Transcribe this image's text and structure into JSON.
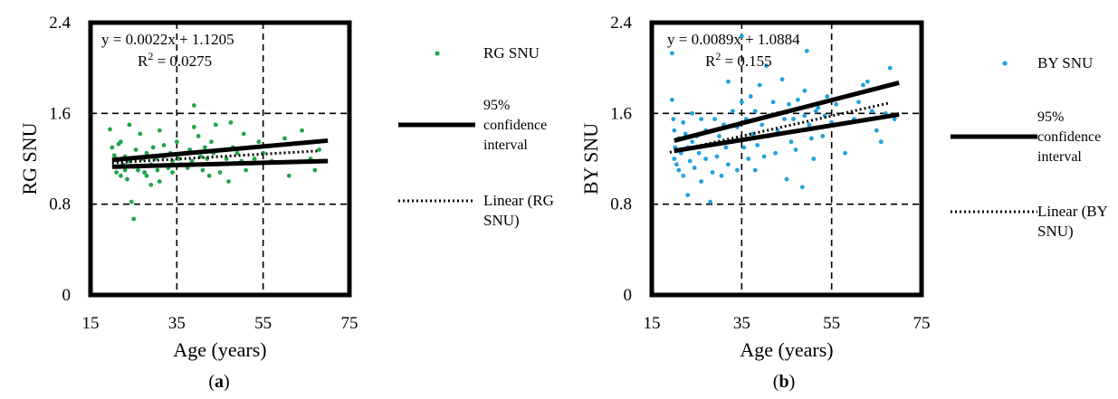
{
  "chart_data": [
    {
      "type": "scatter",
      "panel_label": "a",
      "title": "",
      "xlabel": "Age (years)",
      "ylabel": "RG SNU",
      "xlim": [
        15,
        75
      ],
      "ylim": [
        0,
        2.4
      ],
      "xticks": [
        "15",
        "35",
        "55",
        "75"
      ],
      "yticks": [
        "0",
        "0.8",
        "1.6",
        "2.4"
      ],
      "grid": "dashed at x=35, x=55, y=0.8, y=1.6",
      "legend_position": "right",
      "equation": "y = 0.0022x + 1.1205",
      "r2_prefix": "R",
      "r2_sup": "2",
      "r2_suffix": " = 0.0275",
      "color": "#1fa64a",
      "trend": {
        "name": "Linear (RG SNU)",
        "slope": 0.0022,
        "intercept": 1.1205,
        "x": [
          20,
          68
        ]
      },
      "ci_upper": {
        "x": [
          20,
          70
        ],
        "y": [
          1.19,
          1.36
        ]
      },
      "ci_lower": {
        "x": [
          20,
          70
        ],
        "y": [
          1.13,
          1.18
        ]
      },
      "legend": [
        {
          "kind": "dot",
          "label": "RG SNU"
        },
        {
          "kind": "thick",
          "label": "95% confidence interval"
        },
        {
          "kind": "dotted",
          "label": "Linear (RG SNU)"
        }
      ],
      "series": [
        {
          "name": "RG SNU",
          "points": [
            [
              19.5,
              1.46
            ],
            [
              20,
              1.3
            ],
            [
              20.5,
              1.23
            ],
            [
              21,
              1.2
            ],
            [
              21,
              1.08
            ],
            [
              21.5,
              1.33
            ],
            [
              22,
              1.05
            ],
            [
              22,
              1.35
            ],
            [
              22.5,
              1.15
            ],
            [
              23,
              1.1
            ],
            [
              23,
              1.22
            ],
            [
              23.5,
              1.02
            ],
            [
              24,
              1.5
            ],
            [
              24,
              1.18
            ],
            [
              24.5,
              0.82
            ],
            [
              25,
              0.67
            ],
            [
              25,
              1.13
            ],
            [
              25.5,
              1.28
            ],
            [
              26,
              1.1
            ],
            [
              26.5,
              1.42
            ],
            [
              27,
              1.2
            ],
            [
              27.5,
              1.08
            ],
            [
              28,
              1.25
            ],
            [
              28,
              1.05
            ],
            [
              29,
              1.15
            ],
            [
              29,
              0.97
            ],
            [
              29.5,
              1.3
            ],
            [
              30,
              1.2
            ],
            [
              30.5,
              1.1
            ],
            [
              31,
              1.45
            ],
            [
              31,
              1.0
            ],
            [
              32,
              1.22
            ],
            [
              32,
              1.32
            ],
            [
              33,
              1.12
            ],
            [
              33.5,
              1.25
            ],
            [
              34,
              1.18
            ],
            [
              34,
              1.08
            ],
            [
              35,
              1.35
            ],
            [
              35.5,
              1.2
            ],
            [
              36,
              1.15
            ],
            [
              37,
              1.25
            ],
            [
              37.5,
              1.12
            ],
            [
              38,
              1.28
            ],
            [
              38.5,
              1.18
            ],
            [
              39,
              1.67
            ],
            [
              39,
              1.48
            ],
            [
              40,
              1.4
            ],
            [
              40.5,
              1.22
            ],
            [
              41,
              1.1
            ],
            [
              41.5,
              1.3
            ],
            [
              42,
              1.2
            ],
            [
              42.5,
              1.05
            ],
            [
              43,
              1.35
            ],
            [
              43.5,
              1.25
            ],
            [
              44,
              1.5
            ],
            [
              44.5,
              1.15
            ],
            [
              45,
              1.08
            ],
            [
              46,
              1.28
            ],
            [
              46.5,
              1.2
            ],
            [
              47,
              1.0
            ],
            [
              47.5,
              1.52
            ],
            [
              48,
              1.3
            ],
            [
              49,
              1.25
            ],
            [
              50,
              1.18
            ],
            [
              50.5,
              1.42
            ],
            [
              51,
              1.1
            ],
            [
              52,
              1.3
            ],
            [
              53,
              1.2
            ],
            [
              54,
              1.35
            ],
            [
              55,
              1.25
            ],
            [
              57,
              1.18
            ],
            [
              60,
              1.38
            ],
            [
              61,
              1.05
            ],
            [
              64,
              1.45
            ],
            [
              66,
              1.2
            ],
            [
              67,
              1.1
            ],
            [
              68,
              1.28
            ]
          ]
        }
      ]
    },
    {
      "type": "scatter",
      "panel_label": "b",
      "title": "",
      "xlabel": "Age (years)",
      "ylabel": "BY SNU",
      "xlim": [
        15,
        75
      ],
      "ylim": [
        0,
        2.4
      ],
      "xticks": [
        "15",
        "35",
        "55",
        "75"
      ],
      "yticks": [
        "0",
        "0.8",
        "1.6",
        "2.4"
      ],
      "grid": "dashed at x=35, x=55, y=0.8, y=1.6",
      "legend_position": "right",
      "equation": "y = 0.0089x + 1.0884",
      "r2_prefix": "R",
      "r2_sup": "2",
      "r2_suffix": " = 0.155",
      "color": "#1fa3dd",
      "trend": {
        "name": "Linear (BY SNU)",
        "slope": 0.0089,
        "intercept": 1.0884,
        "x": [
          19,
          68
        ]
      },
      "ci_upper": {
        "x": [
          20,
          70
        ],
        "y": [
          1.36,
          1.87
        ]
      },
      "ci_lower": {
        "x": [
          20,
          70
        ],
        "y": [
          1.27,
          1.59
        ]
      },
      "legend": [
        {
          "kind": "dot",
          "label": "BY SNU"
        },
        {
          "kind": "thick",
          "label": "95% confidence interval"
        },
        {
          "kind": "dotted",
          "label": "Linear (BY SNU)"
        }
      ],
      "series": [
        {
          "name": "BY SNU",
          "points": [
            [
              19.5,
              2.13
            ],
            [
              19.5,
              1.72
            ],
            [
              19.8,
              1.55
            ],
            [
              20,
              1.45
            ],
            [
              20,
              1.2
            ],
            [
              20.2,
              1.3
            ],
            [
              20.5,
              1.15
            ],
            [
              21,
              1.38
            ],
            [
              21,
              1.1
            ],
            [
              21.5,
              1.25
            ],
            [
              22,
              1.52
            ],
            [
              22,
              1.05
            ],
            [
              22.5,
              1.42
            ],
            [
              23,
              1.3
            ],
            [
              23,
              0.88
            ],
            [
              23.5,
              1.18
            ],
            [
              24,
              1.6
            ],
            [
              24,
              1.35
            ],
            [
              24.5,
              1.12
            ],
            [
              25,
              1.4
            ],
            [
              25.5,
              1.25
            ],
            [
              26,
              1.55
            ],
            [
              26,
              1.0
            ],
            [
              27,
              1.2
            ],
            [
              27,
              1.45
            ],
            [
              28,
              0.82
            ],
            [
              28,
              1.32
            ],
            [
              28.5,
              1.08
            ],
            [
              29,
              1.55
            ],
            [
              29.5,
              1.22
            ],
            [
              30,
              1.4
            ],
            [
              30.5,
              1.05
            ],
            [
              31,
              1.5
            ],
            [
              31.5,
              1.3
            ],
            [
              32,
              1.88
            ],
            [
              32,
              1.15
            ],
            [
              33,
              1.62
            ],
            [
              33,
              1.35
            ],
            [
              34,
              1.1
            ],
            [
              34,
              1.48
            ],
            [
              35,
              2.28
            ],
            [
              35,
              1.7
            ],
            [
              35.5,
              1.3
            ],
            [
              36,
              1.55
            ],
            [
              36.5,
              1.2
            ],
            [
              37,
              1.75
            ],
            [
              37.5,
              1.42
            ],
            [
              38,
              1.62
            ],
            [
              38,
              1.1
            ],
            [
              38.5,
              1.32
            ],
            [
              39,
              1.85
            ],
            [
              39.5,
              1.5
            ],
            [
              40,
              1.22
            ],
            [
              40.5,
              2.02
            ],
            [
              41,
              1.58
            ],
            [
              41,
              1.4
            ],
            [
              42,
              1.7
            ],
            [
              42.5,
              1.25
            ],
            [
              43,
              1.6
            ],
            [
              43,
              1.45
            ],
            [
              44,
              1.9
            ],
            [
              44.5,
              1.55
            ],
            [
              45,
              1.02
            ],
            [
              45.5,
              1.68
            ],
            [
              46,
              1.35
            ],
            [
              46.5,
              1.55
            ],
            [
              47,
              1.28
            ],
            [
              47.5,
              1.72
            ],
            [
              48,
              1.45
            ],
            [
              48.5,
              0.95
            ],
            [
              49,
              1.8
            ],
            [
              49,
              1.58
            ],
            [
              49.5,
              2.15
            ],
            [
              50,
              1.5
            ],
            [
              50.5,
              1.38
            ],
            [
              51,
              1.2
            ],
            [
              51.5,
              1.62
            ],
            [
              52,
              1.65
            ],
            [
              53,
              1.4
            ],
            [
              53.5,
              1.58
            ],
            [
              54,
              1.75
            ],
            [
              55,
              1.52
            ],
            [
              56,
              1.68
            ],
            [
              58,
              1.25
            ],
            [
              60,
              1.55
            ],
            [
              61,
              1.7
            ],
            [
              62,
              1.85
            ],
            [
              63,
              1.88
            ],
            [
              64,
              1.62
            ],
            [
              65,
              1.45
            ],
            [
              66,
              1.35
            ],
            [
              67,
              1.6
            ],
            [
              69,
              1.55
            ],
            [
              68,
              2.0
            ]
          ]
        }
      ]
    }
  ]
}
